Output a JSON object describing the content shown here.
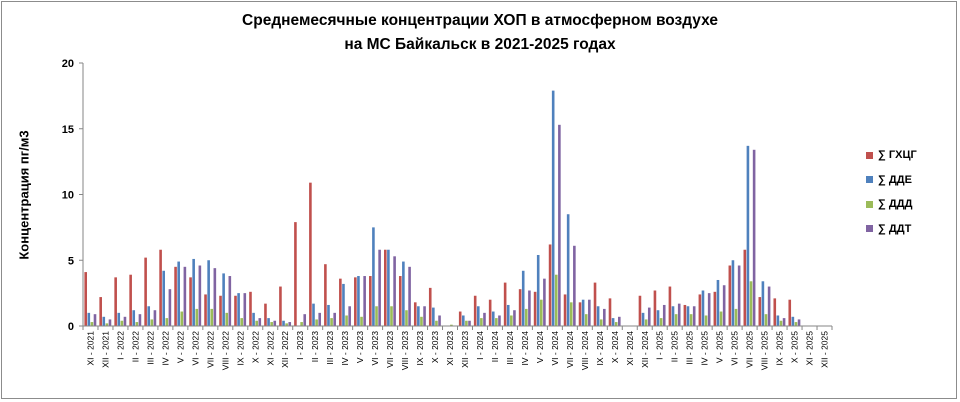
{
  "chart_data": {
    "type": "bar",
    "title_line1": "Среднемесячные концентрации ХОП в атмосферном воздухе",
    "title_line2": "на МС Байкальск  в 2021-2025 годах",
    "xlabel": "",
    "ylabel": "Концентрация пг/м3",
    "ylim": [
      0,
      20
    ],
    "yticks": [
      "0",
      "5",
      "10",
      "15",
      "20"
    ],
    "grid": false,
    "legend_position": "right",
    "categories": [
      "XI - 2021",
      "XII - 2021",
      "I - 2022",
      "II - 2022",
      "III - 2022",
      "IV - 2022",
      "V - 2022",
      "VI - 2022",
      "VII - 2022",
      "VIII - 2022",
      "IX - 2022",
      "X - 2022",
      "XI - 2022",
      "XII - 2022",
      "I - 2023",
      "II - 2023",
      "III - 2023",
      "IV - 2023",
      "V - 2023",
      "VI - 2023",
      "VII - 2023",
      "VIII - 2023",
      "IX - 2023",
      "X - 2023",
      "XI - 2023",
      "XII - 2023",
      "I - 2024",
      "II - 2024",
      "III - 2024",
      "IV - 2024",
      "V - 2024",
      "VI - 2024",
      "VII - 2024",
      "VIII - 2024",
      "IX - 2024",
      "X - 2024",
      "XI - 2024",
      "XII - 2024",
      "I - 2025",
      "II - 2025",
      "III - 2025",
      "IV - 2025",
      "V - 2025",
      "VI - 2025",
      "VII - 2025",
      "VIII - 2025",
      "IX - 2025",
      "X - 2025",
      "XI - 2025",
      "XII - 2025"
    ],
    "series": [
      {
        "name": "∑ ГХЦГ",
        "color": "#c0504d",
        "values": [
          4.1,
          2.2,
          3.7,
          3.9,
          5.2,
          5.8,
          4.5,
          3.7,
          2.4,
          2.3,
          2.3,
          2.6,
          1.7,
          3.0,
          7.9,
          10.9,
          4.7,
          3.6,
          3.7,
          3.8,
          5.8,
          3.8,
          1.8,
          2.9,
          0.0,
          1.1,
          2.3,
          2.0,
          3.3,
          2.8,
          2.6,
          6.2,
          2.4,
          1.8,
          3.3,
          2.1,
          0.0,
          2.3,
          2.7,
          3.0,
          1.6,
          2.4,
          2.6,
          4.6,
          5.8,
          2.2,
          2.1,
          2.0,
          0.0,
          0.0
        ]
      },
      {
        "name": "∑ ДДЕ",
        "color": "#4f81bd",
        "values": [
          1.0,
          0.7,
          1.0,
          1.2,
          1.5,
          4.2,
          4.9,
          5.1,
          5.0,
          4.0,
          2.5,
          1.0,
          0.6,
          0.4,
          0.0,
          1.7,
          1.6,
          3.2,
          3.8,
          7.5,
          5.8,
          4.9,
          1.5,
          1.4,
          0.0,
          0.8,
          1.5,
          1.1,
          1.6,
          4.2,
          5.4,
          17.9,
          8.5,
          2.0,
          1.5,
          0.6,
          0.0,
          1.0,
          1.2,
          1.5,
          1.5,
          2.7,
          3.5,
          5.0,
          13.7,
          3.4,
          0.8,
          0.7,
          0.0,
          0.0
        ]
      },
      {
        "name": "∑ ДДД",
        "color": "#9bbb59",
        "values": [
          0.3,
          0.2,
          0.4,
          0.3,
          0.5,
          0.6,
          1.1,
          1.3,
          1.3,
          1.0,
          0.6,
          0.4,
          0.3,
          0.2,
          0.3,
          0.5,
          0.6,
          0.8,
          0.7,
          1.5,
          1.5,
          1.2,
          0.7,
          0.4,
          0.1,
          0.4,
          0.6,
          0.6,
          0.8,
          1.3,
          2.0,
          3.9,
          1.8,
          0.9,
          0.5,
          0.3,
          0.0,
          0.5,
          0.6,
          0.9,
          0.9,
          0.8,
          1.1,
          1.3,
          3.4,
          0.9,
          0.4,
          0.3,
          0.0,
          0.0
        ]
      },
      {
        "name": "∑ ДДТ",
        "color": "#8064a2",
        "values": [
          0.9,
          0.5,
          0.7,
          0.9,
          1.2,
          2.8,
          4.5,
          4.6,
          4.4,
          3.8,
          2.5,
          0.6,
          0.4,
          0.3,
          0.9,
          1.0,
          1.0,
          1.5,
          3.8,
          5.8,
          5.3,
          4.5,
          1.5,
          0.8,
          0.0,
          0.4,
          1.0,
          0.8,
          1.2,
          2.7,
          3.6,
          15.3,
          6.1,
          2.0,
          1.3,
          0.7,
          0.0,
          1.4,
          1.6,
          1.7,
          1.5,
          2.5,
          3.1,
          4.6,
          13.4,
          3.0,
          0.6,
          0.5,
          0.0,
          0.0
        ]
      }
    ]
  }
}
